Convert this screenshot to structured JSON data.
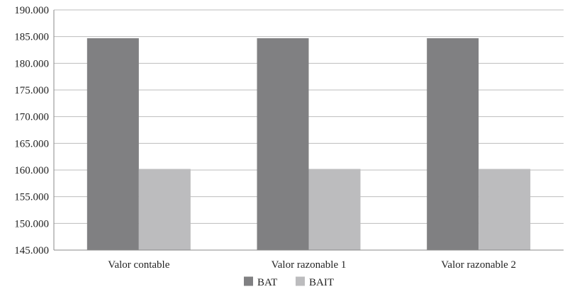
{
  "chart_data": {
    "type": "bar",
    "title": "",
    "xlabel": "",
    "ylabel": "",
    "categories": [
      "Valor contable",
      "Valor razonable 1",
      "Valor razonable 2"
    ],
    "series": [
      {
        "name": "BAT",
        "values": [
          184700,
          184700,
          184700
        ],
        "color": "#808082"
      },
      {
        "name": "BAIT",
        "values": [
          160200,
          160200,
          160200
        ],
        "color": "#bcbcbe"
      }
    ],
    "ylim": [
      145000,
      190000
    ],
    "yticks": [
      145000,
      150000,
      155000,
      160000,
      165000,
      170000,
      175000,
      180000,
      185000,
      190000
    ],
    "ytick_labels": [
      "145.000",
      "150.000",
      "155.000",
      "160.000",
      "165.000",
      "170.000",
      "175.000",
      "180.000",
      "185.000",
      "190.000"
    ],
    "grid": true,
    "legend_position": "bottom-center"
  }
}
